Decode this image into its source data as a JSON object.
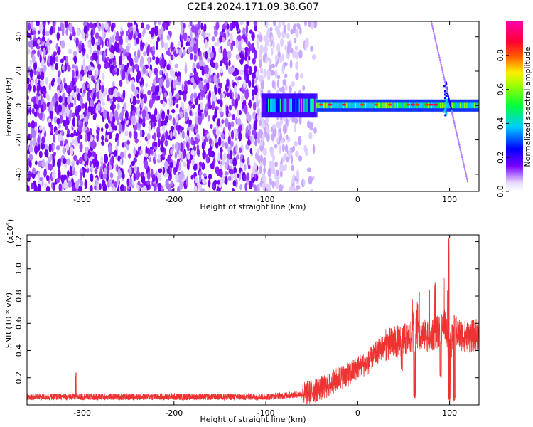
{
  "chart_data": [
    {
      "type": "heatmap",
      "title": "C2E4.2024.171.09.38.G07",
      "xlabel": "Height of straight line (km)",
      "ylabel": "Frequency (Hz)",
      "xlim": [
        -360,
        132
      ],
      "ylim": [
        -50,
        49
      ],
      "xticks": [
        "-300",
        "-200",
        "-100",
        "0",
        "100"
      ],
      "xtick_values": [
        -300,
        -200,
        -100,
        0,
        100
      ],
      "yticks": [
        "-40",
        "-20",
        "0",
        "20",
        "40"
      ],
      "ytick_values": [
        -40,
        -20,
        0,
        20,
        40
      ],
      "colorbar": {
        "label": "Normalized spectral amplitude",
        "range": [
          0,
          1
        ],
        "ticks": [
          "0.0",
          "0.2",
          "0.4",
          "0.6",
          "0.8"
        ],
        "tick_values": [
          0.0,
          0.2,
          0.4,
          0.6,
          0.8
        ],
        "colormap": "rainbow (white-violet-blue-cyan-green-yellow-red-magenta)"
      },
      "features": [
        {
          "name": "scattered noise",
          "x_range": [
            -360,
            -45
          ],
          "y_range": [
            -50,
            49
          ],
          "amplitude": 0.1
        },
        {
          "name": "main signal band",
          "x_range": [
            -105,
            132
          ],
          "center_hz": 0,
          "amplitude": 0.8
        },
        {
          "name": "sloped trace",
          "points": [
            [
              80,
              49
            ],
            [
              120,
              -45
            ]
          ]
        }
      ]
    },
    {
      "type": "line",
      "ylabel": "SNR (10 * v/v)",
      "xlabel": "Height of straight line (km)",
      "yscale_label": "(x10",
      "yscale_exponent": "4",
      "yscale_close": ")",
      "xlim": [
        -360,
        132
      ],
      "ylim": [
        0,
        1.25
      ],
      "xticks": [
        "-300",
        "-200",
        "-100",
        "0",
        "100"
      ],
      "xtick_values": [
        -300,
        -200,
        -100,
        0,
        100
      ],
      "yticks": [
        "0.2",
        "0.4",
        "0.6",
        "0.8",
        "1.0",
        "1.2"
      ],
      "ytick_values": [
        0.2,
        0.4,
        0.6,
        0.8,
        1.0,
        1.2
      ],
      "series": [
        {
          "color": "#ee3333",
          "x": [
            -360,
            -300,
            -250,
            -200,
            -150,
            -100,
            -80,
            -60,
            -40,
            -30,
            -20,
            -10,
            0,
            10,
            20,
            30,
            40,
            50,
            60,
            70,
            80,
            90,
            95,
            100,
            105,
            110,
            120,
            132
          ],
          "values": [
            0.06,
            0.06,
            0.06,
            0.06,
            0.06,
            0.06,
            0.07,
            0.08,
            0.12,
            0.15,
            0.2,
            0.22,
            0.28,
            0.3,
            0.38,
            0.44,
            0.46,
            0.48,
            0.5,
            0.52,
            0.5,
            0.55,
            0.6,
            0.4,
            0.55,
            0.52,
            0.5,
            0.52
          ],
          "peaks": [
            [
              -307,
              0.24
            ],
            [
              60,
              0.78
            ],
            [
              65,
              0.8
            ],
            [
              78,
              0.85
            ],
            [
              84,
              0.92
            ],
            [
              99,
              1.25
            ]
          ],
          "dips": [
            [
              48,
              0.25
            ],
            [
              62,
              0.05
            ],
            [
              90,
              0.2
            ],
            [
              100,
              0.02
            ],
            [
              105,
              0.02
            ]
          ]
        }
      ]
    }
  ]
}
